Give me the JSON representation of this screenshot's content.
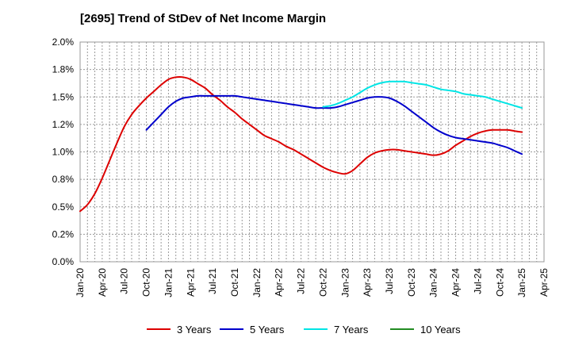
{
  "chart_data": {
    "type": "line",
    "title": "[2695]  Trend of StDev of Net Income Margin",
    "xlabel": "",
    "ylabel": "",
    "ylim": [
      0.0,
      0.02
    ],
    "grid": true,
    "legend_position": "bottom",
    "x_ticks": [
      "Jan-20",
      "Apr-20",
      "Jul-20",
      "Oct-20",
      "Jan-21",
      "Apr-21",
      "Jul-21",
      "Oct-21",
      "Jan-22",
      "Apr-22",
      "Jul-22",
      "Oct-22",
      "Jan-23",
      "Apr-23",
      "Jul-23",
      "Oct-23",
      "Jan-24",
      "Apr-24",
      "Jul-24",
      "Oct-24",
      "Jan-25",
      "Apr-25"
    ],
    "y_ticks": [
      "0.0%",
      "0.2%",
      "0.5%",
      "0.8%",
      "1.0%",
      "1.2%",
      "1.5%",
      "1.8%",
      "2.0%"
    ],
    "series": [
      {
        "name": "3 Years",
        "color": "#dd0000",
        "points": [
          [
            "2020-01",
            0.0046
          ],
          [
            "2020-02",
            0.0052
          ],
          [
            "2020-03",
            0.0062
          ],
          [
            "2020-04",
            0.0076
          ],
          [
            "2020-05",
            0.0092
          ],
          [
            "2020-06",
            0.0108
          ],
          [
            "2020-07",
            0.0123
          ],
          [
            "2020-08",
            0.0134
          ],
          [
            "2020-09",
            0.0142
          ],
          [
            "2020-10",
            0.0149
          ],
          [
            "2020-11",
            0.0155
          ],
          [
            "2020-12",
            0.0161
          ],
          [
            "2021-01",
            0.0166
          ],
          [
            "2021-02",
            0.0168
          ],
          [
            "2021-03",
            0.0168
          ],
          [
            "2021-04",
            0.0166
          ],
          [
            "2021-05",
            0.0162
          ],
          [
            "2021-06",
            0.0158
          ],
          [
            "2021-07",
            0.0152
          ],
          [
            "2021-08",
            0.0147
          ],
          [
            "2021-09",
            0.0141
          ],
          [
            "2021-10",
            0.0136
          ],
          [
            "2021-11",
            0.013
          ],
          [
            "2021-12",
            0.0125
          ],
          [
            "2022-01",
            0.012
          ],
          [
            "2022-02",
            0.0115
          ],
          [
            "2022-03",
            0.0112
          ],
          [
            "2022-04",
            0.0109
          ],
          [
            "2022-05",
            0.0105
          ],
          [
            "2022-06",
            0.0102
          ],
          [
            "2022-07",
            0.0098
          ],
          [
            "2022-08",
            0.0094
          ],
          [
            "2022-09",
            0.009
          ],
          [
            "2022-10",
            0.0086
          ],
          [
            "2022-11",
            0.0083
          ],
          [
            "2022-12",
            0.0081
          ],
          [
            "2023-01",
            0.008
          ],
          [
            "2023-02",
            0.0083
          ],
          [
            "2023-03",
            0.0089
          ],
          [
            "2023-04",
            0.0095
          ],
          [
            "2023-05",
            0.0099
          ],
          [
            "2023-06",
            0.0101
          ],
          [
            "2023-07",
            0.0102
          ],
          [
            "2023-08",
            0.0102
          ],
          [
            "2023-09",
            0.0101
          ],
          [
            "2023-10",
            0.01
          ],
          [
            "2023-11",
            0.0099
          ],
          [
            "2023-12",
            0.0098
          ],
          [
            "2024-01",
            0.0097
          ],
          [
            "2024-02",
            0.0098
          ],
          [
            "2024-03",
            0.0101
          ],
          [
            "2024-04",
            0.0106
          ],
          [
            "2024-05",
            0.011
          ],
          [
            "2024-06",
            0.0114
          ],
          [
            "2024-07",
            0.0117
          ],
          [
            "2024-08",
            0.0119
          ],
          [
            "2024-09",
            0.012
          ],
          [
            "2024-10",
            0.012
          ],
          [
            "2024-11",
            0.012
          ],
          [
            "2024-12",
            0.0119
          ],
          [
            "2025-01",
            0.0118
          ]
        ]
      },
      {
        "name": "5 Years",
        "color": "#0000cc",
        "points": [
          [
            "2020-10",
            0.012
          ],
          [
            "2020-11",
            0.0127
          ],
          [
            "2020-12",
            0.0134
          ],
          [
            "2021-01",
            0.0141
          ],
          [
            "2021-02",
            0.0146
          ],
          [
            "2021-03",
            0.0149
          ],
          [
            "2021-04",
            0.015
          ],
          [
            "2021-05",
            0.0151
          ],
          [
            "2021-06",
            0.0151
          ],
          [
            "2021-07",
            0.0151
          ],
          [
            "2021-08",
            0.0151
          ],
          [
            "2021-09",
            0.0151
          ],
          [
            "2021-10",
            0.0151
          ],
          [
            "2021-11",
            0.015
          ],
          [
            "2021-12",
            0.0149
          ],
          [
            "2022-01",
            0.0148
          ],
          [
            "2022-02",
            0.0147
          ],
          [
            "2022-03",
            0.0146
          ],
          [
            "2022-04",
            0.0145
          ],
          [
            "2022-05",
            0.0144
          ],
          [
            "2022-06",
            0.0143
          ],
          [
            "2022-07",
            0.0142
          ],
          [
            "2022-08",
            0.0141
          ],
          [
            "2022-09",
            0.014
          ],
          [
            "2022-10",
            0.014
          ],
          [
            "2022-11",
            0.014
          ],
          [
            "2022-12",
            0.0141
          ],
          [
            "2023-01",
            0.0143
          ],
          [
            "2023-02",
            0.0145
          ],
          [
            "2023-03",
            0.0147
          ],
          [
            "2023-04",
            0.0149
          ],
          [
            "2023-05",
            0.015
          ],
          [
            "2023-06",
            0.015
          ],
          [
            "2023-07",
            0.0149
          ],
          [
            "2023-08",
            0.0146
          ],
          [
            "2023-09",
            0.0142
          ],
          [
            "2023-10",
            0.0137
          ],
          [
            "2023-11",
            0.0132
          ],
          [
            "2023-12",
            0.0127
          ],
          [
            "2024-01",
            0.0122
          ],
          [
            "2024-02",
            0.0118
          ],
          [
            "2024-03",
            0.0115
          ],
          [
            "2024-04",
            0.0113
          ],
          [
            "2024-05",
            0.0112
          ],
          [
            "2024-06",
            0.0111
          ],
          [
            "2024-07",
            0.011
          ],
          [
            "2024-08",
            0.0109
          ],
          [
            "2024-09",
            0.0108
          ],
          [
            "2024-10",
            0.0106
          ],
          [
            "2024-11",
            0.0104
          ],
          [
            "2024-12",
            0.0101
          ],
          [
            "2025-01",
            0.0098
          ]
        ]
      },
      {
        "name": "7 Years",
        "color": "#00e5e5",
        "points": [
          [
            "2022-10",
            0.0141
          ],
          [
            "2022-11",
            0.0142
          ],
          [
            "2022-12",
            0.0144
          ],
          [
            "2023-01",
            0.0147
          ],
          [
            "2023-02",
            0.015
          ],
          [
            "2023-03",
            0.0154
          ],
          [
            "2023-04",
            0.0158
          ],
          [
            "2023-05",
            0.0161
          ],
          [
            "2023-06",
            0.0163
          ],
          [
            "2023-07",
            0.0164
          ],
          [
            "2023-08",
            0.0164
          ],
          [
            "2023-09",
            0.0164
          ],
          [
            "2023-10",
            0.0163
          ],
          [
            "2023-11",
            0.0162
          ],
          [
            "2023-12",
            0.0161
          ],
          [
            "2024-01",
            0.0159
          ],
          [
            "2024-02",
            0.0157
          ],
          [
            "2024-03",
            0.0156
          ],
          [
            "2024-04",
            0.0155
          ],
          [
            "2024-05",
            0.0153
          ],
          [
            "2024-06",
            0.0152
          ],
          [
            "2024-07",
            0.0151
          ],
          [
            "2024-08",
            0.015
          ],
          [
            "2024-09",
            0.0148
          ],
          [
            "2024-10",
            0.0146
          ],
          [
            "2024-11",
            0.0144
          ],
          [
            "2024-12",
            0.0142
          ],
          [
            "2025-01",
            0.014
          ]
        ]
      },
      {
        "name": "10 Years",
        "color": "#228b22",
        "points": []
      }
    ]
  }
}
